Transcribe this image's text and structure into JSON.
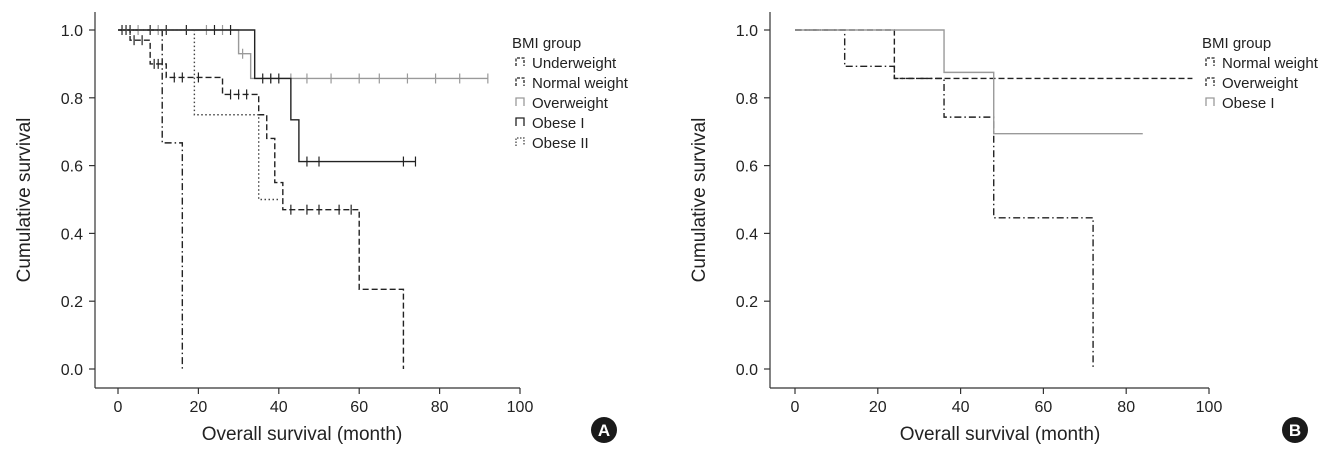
{
  "chart_data": [
    {
      "panel": "A",
      "type": "line",
      "step": true,
      "xlabel": "Overall survival (month)",
      "ylabel": "Cumulative survival",
      "xlim": [
        0,
        100
      ],
      "ylim": [
        0,
        1
      ],
      "xticks": [
        "0",
        "20",
        "40",
        "60",
        "80",
        "100"
      ],
      "yticks": [
        "0.0",
        "0.2",
        "0.4",
        "0.6",
        "0.8",
        "1.0"
      ],
      "grid": false,
      "legend": {
        "title": "BMI group",
        "position": "top-right"
      },
      "series": [
        {
          "name": "Underweight",
          "color": "#222222",
          "dash": "dashdot",
          "steps": [
            [
              0,
              1.0
            ],
            [
              11,
              0.667
            ],
            [
              16,
              0.0
            ]
          ],
          "censored": []
        },
        {
          "name": "Normal weight",
          "color": "#222222",
          "dash": "dashed",
          "steps": [
            [
              0,
              1.0
            ],
            [
              3,
              0.97
            ],
            [
              8,
              0.9
            ],
            [
              12,
              0.86
            ],
            [
              26,
              0.81
            ],
            [
              35,
              0.75
            ],
            [
              37,
              0.68
            ],
            [
              39,
              0.55
            ],
            [
              41,
              0.47
            ],
            [
              60,
              0.235
            ],
            [
              71,
              0.0
            ]
          ],
          "censored": [
            [
              2,
              1.0
            ],
            [
              4,
              0.97
            ],
            [
              6,
              0.97
            ],
            [
              9,
              0.9
            ],
            [
              10,
              0.9
            ],
            [
              14,
              0.86
            ],
            [
              16,
              0.86
            ],
            [
              20,
              0.86
            ],
            [
              28,
              0.81
            ],
            [
              30,
              0.81
            ],
            [
              32,
              0.81
            ],
            [
              43,
              0.47
            ],
            [
              47,
              0.47
            ],
            [
              50,
              0.47
            ],
            [
              55,
              0.47
            ],
            [
              58,
              0.47
            ]
          ]
        },
        {
          "name": "Overweight",
          "color": "#9a9a9a",
          "dash": "solid",
          "steps": [
            [
              0,
              1.0
            ],
            [
              30,
              0.93
            ],
            [
              33,
              0.857
            ],
            [
              92,
              0.857
            ]
          ],
          "censored": [
            [
              5,
              1.0
            ],
            [
              10,
              1.0
            ],
            [
              22,
              1.0
            ],
            [
              26,
              1.0
            ],
            [
              31,
              0.93
            ],
            [
              38,
              0.857
            ],
            [
              43,
              0.857
            ],
            [
              47,
              0.857
            ],
            [
              53,
              0.857
            ],
            [
              60,
              0.857
            ],
            [
              65,
              0.857
            ],
            [
              72,
              0.857
            ],
            [
              79,
              0.857
            ],
            [
              85,
              0.857
            ],
            [
              92,
              0.857
            ]
          ]
        },
        {
          "name": "Obese I",
          "color": "#222222",
          "dash": "solid",
          "steps": [
            [
              0,
              1.0
            ],
            [
              34,
              0.857
            ],
            [
              43,
              0.735
            ],
            [
              45,
              0.612
            ],
            [
              74,
              0.612
            ]
          ],
          "censored": [
            [
              1,
              1.0
            ],
            [
              3,
              1.0
            ],
            [
              8,
              1.0
            ],
            [
              12,
              1.0
            ],
            [
              17,
              1.0
            ],
            [
              24,
              1.0
            ],
            [
              28,
              1.0
            ],
            [
              36,
              0.857
            ],
            [
              38,
              0.857
            ],
            [
              40,
              0.857
            ],
            [
              47,
              0.612
            ],
            [
              50,
              0.612
            ],
            [
              71,
              0.612
            ],
            [
              74,
              0.612
            ]
          ]
        },
        {
          "name": "Obese II",
          "color": "#444444",
          "dash": "dotted",
          "steps": [
            [
              0,
              1.0
            ],
            [
              19,
              0.75
            ],
            [
              35,
              0.5
            ],
            [
              40,
              0.5
            ]
          ],
          "censored": []
        }
      ]
    },
    {
      "panel": "B",
      "type": "line",
      "step": true,
      "xlabel": "Overall survival (month)",
      "ylabel": "Cumulative survival",
      "xlim": [
        0,
        100
      ],
      "ylim": [
        0,
        1
      ],
      "xticks": [
        "0",
        "20",
        "40",
        "60",
        "80",
        "100"
      ],
      "yticks": [
        "0.0",
        "0.2",
        "0.4",
        "0.6",
        "0.8",
        "1.0"
      ],
      "grid": false,
      "legend": {
        "title": "BMI group",
        "position": "top-right"
      },
      "series": [
        {
          "name": "Normal weight",
          "color": "#222222",
          "dash": "dashdot",
          "steps": [
            [
              0,
              1.0
            ],
            [
              12,
              0.893
            ],
            [
              24,
              0.857
            ],
            [
              36,
              0.743
            ],
            [
              48,
              0.446
            ],
            [
              72,
              0.0
            ]
          ],
          "censored": []
        },
        {
          "name": "Overweight",
          "color": "#222222",
          "dash": "dashed",
          "steps": [
            [
              0,
              1.0
            ],
            [
              24,
              0.857
            ],
            [
              96,
              0.857
            ]
          ],
          "censored": []
        },
        {
          "name": "Obese I",
          "color": "#9a9a9a",
          "dash": "solid",
          "steps": [
            [
              0,
              1.0
            ],
            [
              36,
              0.875
            ],
            [
              48,
              0.694
            ],
            [
              84,
              0.694
            ]
          ],
          "censored": []
        }
      ]
    }
  ]
}
